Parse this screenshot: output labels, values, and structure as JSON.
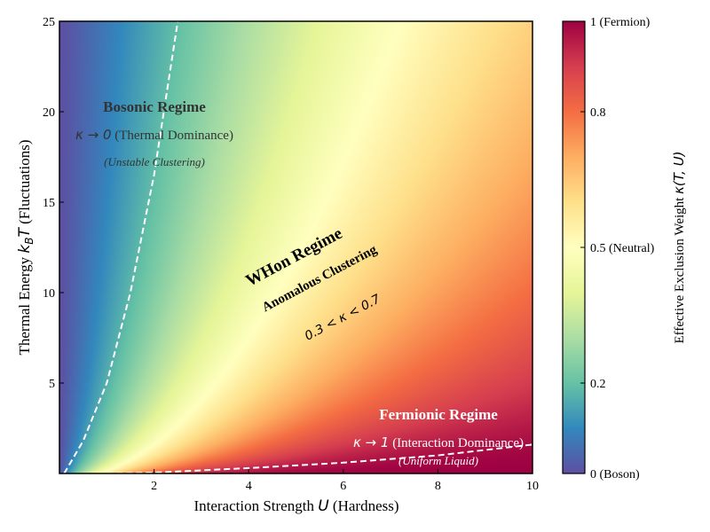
{
  "chart_data": {
    "type": "heatmap",
    "xlabel_prefix": "Interaction Strength ",
    "xlabel_symbol": "U",
    "xlabel_suffix": " (Hardness)",
    "ylabel_prefix": "Thermal Energy ",
    "ylabel_symbol": "k",
    "ylabel_sub": "B",
    "ylabel_symbol2": "T",
    "ylabel_suffix": " (Fluctuations)",
    "xlim": [
      0,
      10
    ],
    "ylim": [
      0,
      25
    ],
    "x_ticks": [
      2,
      4,
      6,
      8,
      10
    ],
    "y_ticks": [
      5,
      10,
      15,
      20,
      25
    ],
    "colormap": "Spectral_r",
    "boundary_curves": [
      {
        "name": "boson-boundary",
        "style": "dashed",
        "color": "#ffffff",
        "x": [
          0.1,
          0.5,
          1.0,
          1.5,
          2.0,
          2.5
        ],
        "y": [
          0.0,
          1.8,
          5.0,
          10.0,
          16.5,
          25.0
        ]
      },
      {
        "name": "fermion-boundary",
        "style": "dashed",
        "color": "#ffffff",
        "x": [
          1.0,
          2.0,
          4.0,
          6.0,
          8.0,
          10.0
        ],
        "y": [
          0.0,
          0.05,
          0.3,
          0.6,
          1.0,
          1.6
        ]
      }
    ],
    "colorbar": {
      "label_prefix": "Effective Exclusion Weight ",
      "label_symbol": "κ(T, U)",
      "range": [
        0,
        1
      ],
      "ticks": [
        {
          "value": 0.0,
          "label": "0 (Boson)"
        },
        {
          "value": 0.2,
          "label": "0.2"
        },
        {
          "value": 0.5,
          "label": "0.5 (Neutral)"
        },
        {
          "value": 0.8,
          "label": "0.8"
        },
        {
          "value": 1.0,
          "label": "1 (Fermion)"
        }
      ]
    },
    "annotations": {
      "bosonic_title": "Bosonic Regime",
      "bosonic_kappa": "κ → 0",
      "bosonic_desc": " (Thermal Dominance)",
      "bosonic_note": "(Unstable Clustering)",
      "whon_title": "WHon Regime",
      "whon_sub": "Anomalous Clustering",
      "whon_range": "0.3 < κ < 0.7",
      "fermionic_title": "Fermionic Regime",
      "fermionic_kappa": "κ → 1",
      "fermionic_desc": " (Interaction Dominance)",
      "fermionic_note": "(Uniform Liquid)"
    },
    "colors": {
      "boson": "#5e4fa2",
      "fermion": "#9e0142",
      "neutral": "#ffffbf",
      "boundary": "#ffffff"
    }
  }
}
